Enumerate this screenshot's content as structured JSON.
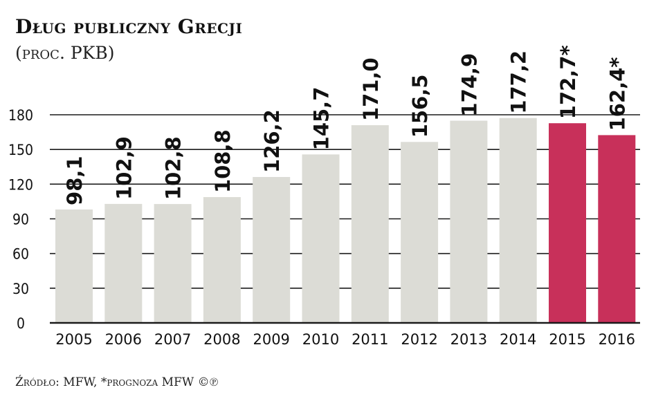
{
  "title": "Dług publiczny Grecji",
  "subtitle": "(proc. PKB)",
  "source": "Źródło: MFW, *prognoza MFW ©℗",
  "colors": {
    "bar": "#dcdcd6",
    "forecast_bar": "#c8305a",
    "grid": "#1a1a1a",
    "text": "#111111"
  },
  "chart_data": {
    "type": "bar",
    "categories": [
      "2005",
      "2006",
      "2007",
      "2008",
      "2009",
      "2010",
      "2011",
      "2012",
      "2013",
      "2014",
      "2015",
      "2016"
    ],
    "values": [
      98.1,
      102.9,
      102.8,
      108.8,
      126.2,
      145.7,
      171.0,
      156.5,
      174.9,
      177.2,
      172.7,
      162.4
    ],
    "value_labels": [
      "98,1",
      "102,9",
      "102,8",
      "108,8",
      "126,2",
      "145,7",
      "171,0",
      "156,5",
      "174,9",
      "177,2",
      "172,7*",
      "162,4*"
    ],
    "forecast": [
      false,
      false,
      false,
      false,
      false,
      false,
      false,
      false,
      false,
      false,
      true,
      true
    ],
    "yticks": [
      0,
      30,
      60,
      90,
      120,
      150,
      180
    ],
    "ylim": [
      0,
      180
    ],
    "grid": true,
    "legend": "none",
    "title": "Dług publiczny Grecji",
    "subtitle": "(proc. PKB)",
    "xlabel": "",
    "ylabel": ""
  }
}
